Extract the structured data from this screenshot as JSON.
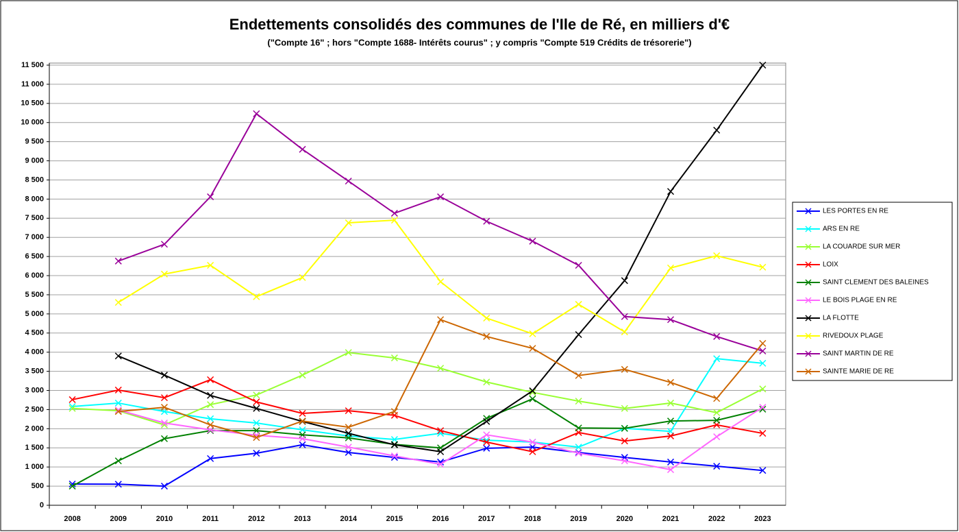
{
  "chart_data": {
    "type": "line",
    "title": "Endettements consolidés des communes de l'Ile de Ré, en milliers d'€",
    "subtitle": "(\"Compte 16\" ; hors \"Compte 1688- Intérêts courus\" ; y compris \"Compte 519 Crédits de trésorerie\")",
    "categories": [
      "2008",
      "2009",
      "2010",
      "2011",
      "2012",
      "2013",
      "2014",
      "2015",
      "2016",
      "2017",
      "2018",
      "2019",
      "2020",
      "2021",
      "2022",
      "2023"
    ],
    "ylim": [
      0,
      11500
    ],
    "yticks": [
      0,
      500,
      {
        "value": 1000,
        "label": "1 000"
      },
      {
        "value": 1500,
        "label": "1 500"
      },
      {
        "value": 2000,
        "label": "2 000"
      },
      {
        "value": 2500,
        "label": "2 500"
      },
      {
        "value": 3000,
        "label": "3 000"
      },
      {
        "value": 3500,
        "label": "3 500"
      },
      {
        "value": 4000,
        "label": "4 000"
      },
      {
        "value": 4500,
        "label": "4 500"
      },
      {
        "value": 5000,
        "label": "5 000"
      },
      {
        "value": 5500,
        "label": "5 500"
      },
      {
        "value": 6000,
        "label": "6 000"
      },
      {
        "value": 6500,
        "label": "6 500"
      },
      {
        "value": 7000,
        "label": "7 000"
      },
      {
        "value": 7500,
        "label": "7 500"
      },
      {
        "value": 8000,
        "label": "8 000"
      },
      {
        "value": 8500,
        "label": "8 500"
      },
      {
        "value": 9000,
        "label": "9 000"
      },
      {
        "value": 9500,
        "label": "9 500"
      },
      {
        "value": 10000,
        "label": "10 000"
      },
      {
        "value": 10500,
        "label": "10 500"
      },
      {
        "value": 11000,
        "label": "11 000"
      },
      {
        "value": 11500,
        "label": "11 500"
      }
    ],
    "grid": true,
    "legend": "right",
    "series": [
      {
        "name": "LES PORTES EN RE",
        "color": "#0000ff",
        "values": [
          555,
          550,
          500,
          1220,
          1360,
          1580,
          1380,
          1250,
          1130,
          1490,
          1520,
          1380,
          1250,
          1130,
          1020,
          910
        ]
      },
      {
        "name": "ARS EN RE",
        "color": "#00ffff",
        "values": [
          2580,
          2670,
          2450,
          2260,
          2150,
          1970,
          1810,
          1720,
          1880,
          1700,
          1650,
          1520,
          2010,
          1930,
          3830,
          3710
        ]
      },
      {
        "name": "LA COUARDE SUR MER",
        "color": "#99ff33",
        "values": [
          2530,
          2470,
          2100,
          2630,
          2880,
          3400,
          3990,
          3850,
          3580,
          3220,
          2950,
          2720,
          2530,
          2670,
          2420,
          3040
        ]
      },
      {
        "name": "LOIX",
        "color": "#ff0000",
        "values": [
          2760,
          3010,
          2810,
          3280,
          2700,
          2400,
          2470,
          2350,
          1950,
          1650,
          1400,
          1900,
          1680,
          1810,
          2100,
          1880
        ]
      },
      {
        "name": "SAINT CLEMENT DES BALEINES",
        "color": "#008000",
        "values": [
          500,
          1160,
          1740,
          1950,
          1950,
          1840,
          1760,
          1590,
          1500,
          2270,
          2780,
          2020,
          2010,
          2200,
          2220,
          2510
        ]
      },
      {
        "name": "LE BOIS PLAGE EN RE",
        "color": "#ff66ff",
        "values": [
          null,
          2490,
          2150,
          1970,
          1830,
          1740,
          1520,
          1290,
          1070,
          1840,
          1650,
          1360,
          1160,
          930,
          1790,
          2560
        ]
      },
      {
        "name": "LA FLOTTE",
        "color": "#000000",
        "values": [
          null,
          3900,
          3400,
          2870,
          2530,
          2190,
          1880,
          1580,
          1400,
          2190,
          2990,
          4460,
          5870,
          8200,
          9800,
          11500
        ]
      },
      {
        "name": "RIVEDOUX PLAGE",
        "color": "#ffff00",
        "values": [
          null,
          5300,
          6040,
          6270,
          5450,
          5950,
          7380,
          7450,
          5840,
          4890,
          4480,
          5250,
          4530,
          6200,
          6520,
          6220
        ]
      },
      {
        "name": "SAINT MARTIN DE RE",
        "color": "#990099",
        "values": [
          null,
          6380,
          6820,
          8060,
          10230,
          9300,
          8470,
          7630,
          8060,
          7420,
          6900,
          6270,
          4930,
          4850,
          4410,
          4030
        ]
      },
      {
        "name": "SAINTE MARIE DE RE",
        "color": "#cc6600",
        "values": [
          null,
          2450,
          2560,
          2100,
          1770,
          2200,
          2040,
          2450,
          4850,
          4410,
          4100,
          3390,
          3550,
          3210,
          2790,
          4230
        ]
      }
    ]
  }
}
